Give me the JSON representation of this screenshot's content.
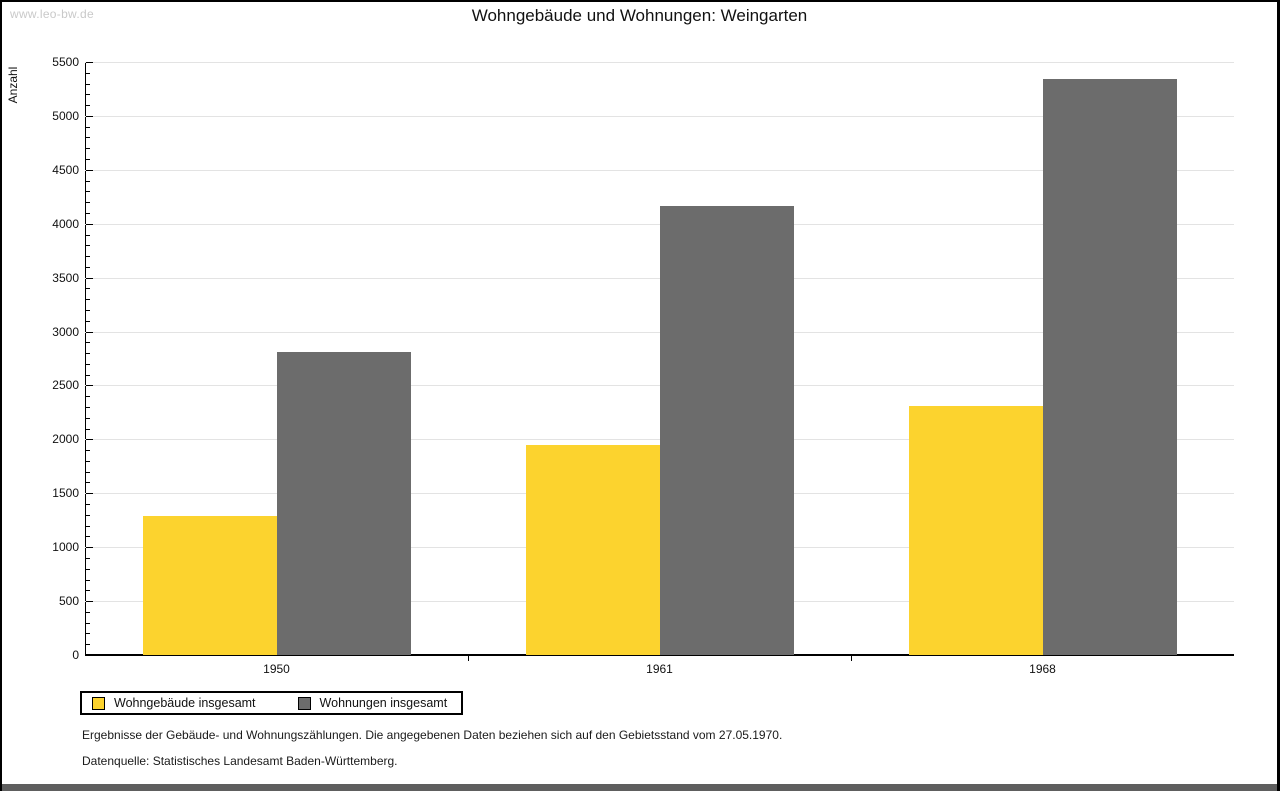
{
  "watermark": "www.leo-bw.de",
  "title": "Wohngebäude und Wohnungen: Weingarten",
  "chart_data": {
    "type": "bar",
    "title": "Wohngebäude und Wohnungen: Weingarten",
    "categories": [
      "1950",
      "1961",
      "1968"
    ],
    "series": [
      {
        "name": "Wohngebäude insgesamt",
        "color": "#FCD32E",
        "values": [
          1285,
          1950,
          2305
        ]
      },
      {
        "name": "Wohnungen insgesamt",
        "color": "#6C6C6C",
        "values": [
          2810,
          4160,
          5340
        ]
      }
    ],
    "xlabel": "",
    "ylabel": "Anzahl",
    "ylim": [
      0,
      5500
    ],
    "ytick_step": 500,
    "yminor_tick_step": 100,
    "grid": true,
    "legend_position": "bottom-left"
  },
  "footnotes": {
    "line1": "Ergebnisse der Gebäude- und Wohnungszählungen. Die angegebenen Daten beziehen sich auf den Gebietsstand vom 27.05.1970.",
    "line2": "Datenquelle: Statistisches Landesamt Baden-Württemberg."
  },
  "colors": {
    "bar_yellow": "#FCD32E",
    "bar_gray": "#6C6C6C",
    "gridline": "#E3E3E3",
    "watermark_text": "#C9C9C9",
    "frame_border": "#000000",
    "bottom_strip": "#5E5E5E"
  }
}
